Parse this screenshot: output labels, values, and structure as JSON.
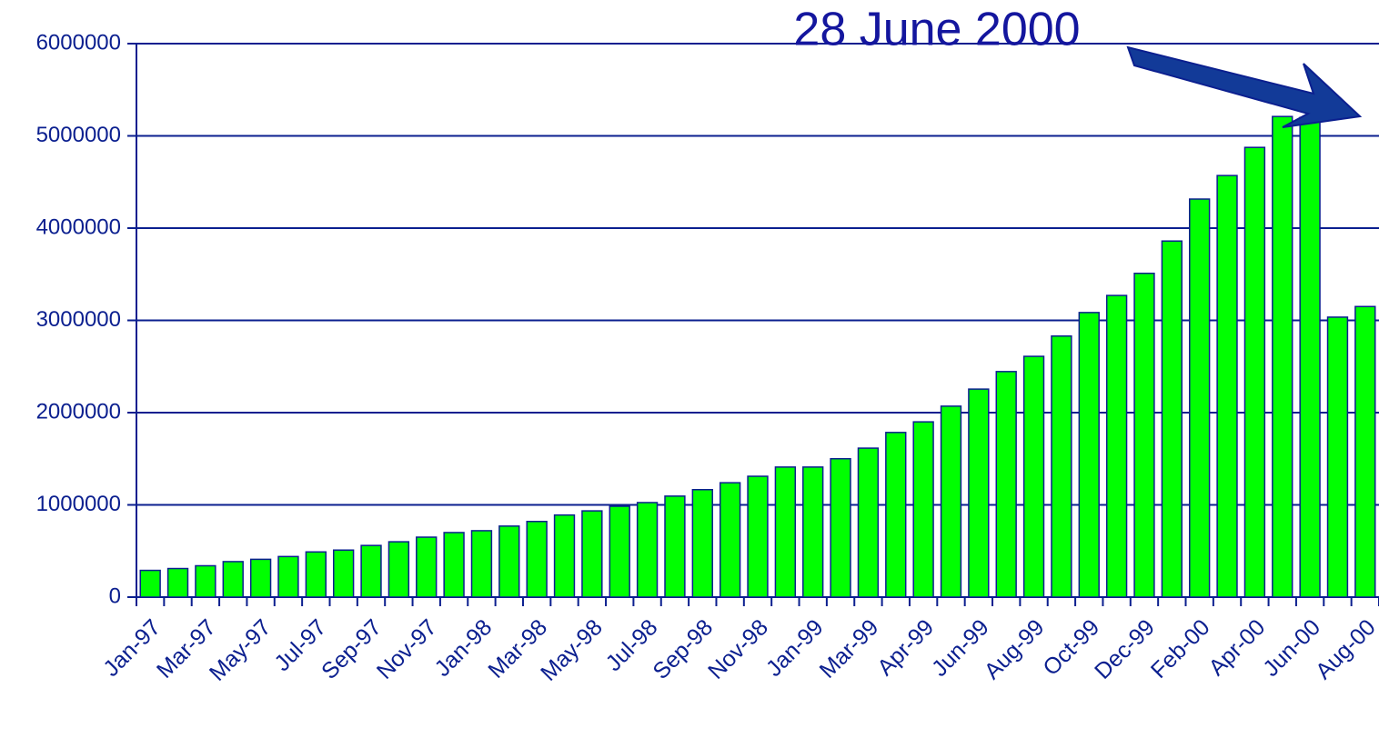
{
  "chart_data": {
    "type": "bar",
    "annotation": "28 June 2000",
    "categories": [
      "Jan-97",
      null,
      "Mar-97",
      null,
      "May-97",
      null,
      "Jul-97",
      null,
      "Sep-97",
      null,
      "Nov-97",
      null,
      "Jan-98",
      null,
      "Mar-98",
      null,
      "May-98",
      null,
      "Jul-98",
      null,
      "Sep-98",
      null,
      "Nov-98",
      null,
      "Jan-99",
      null,
      "Mar-99",
      null,
      "Apr-99",
      null,
      "Jun-99",
      null,
      "Aug-99",
      null,
      "Oct-99",
      null,
      "Dec-99",
      null,
      "Feb-00",
      null,
      "Apr-00",
      null,
      "Jun-00",
      null,
      "Aug-00"
    ],
    "values": [
      290000,
      310000,
      340000,
      385000,
      410000,
      440000,
      490000,
      510000,
      560000,
      600000,
      650000,
      700000,
      720000,
      770000,
      820000,
      890000,
      935000,
      985000,
      1025000,
      1095000,
      1165000,
      1240000,
      1310000,
      1410000,
      1410000,
      1500000,
      1615000,
      1785000,
      1900000,
      2070000,
      2255000,
      2445000,
      2610000,
      2830000,
      3085000,
      3270000,
      3510000,
      3860000,
      4315000,
      4570000,
      4875000,
      5210000,
      5200000,
      3035000,
      3150000
    ],
    "color": "#00ff00",
    "ylim": [
      0,
      6000000
    ],
    "yticks": [
      0,
      1000000,
      2000000,
      3000000,
      4000000,
      5000000,
      6000000
    ],
    "grid": true
  }
}
